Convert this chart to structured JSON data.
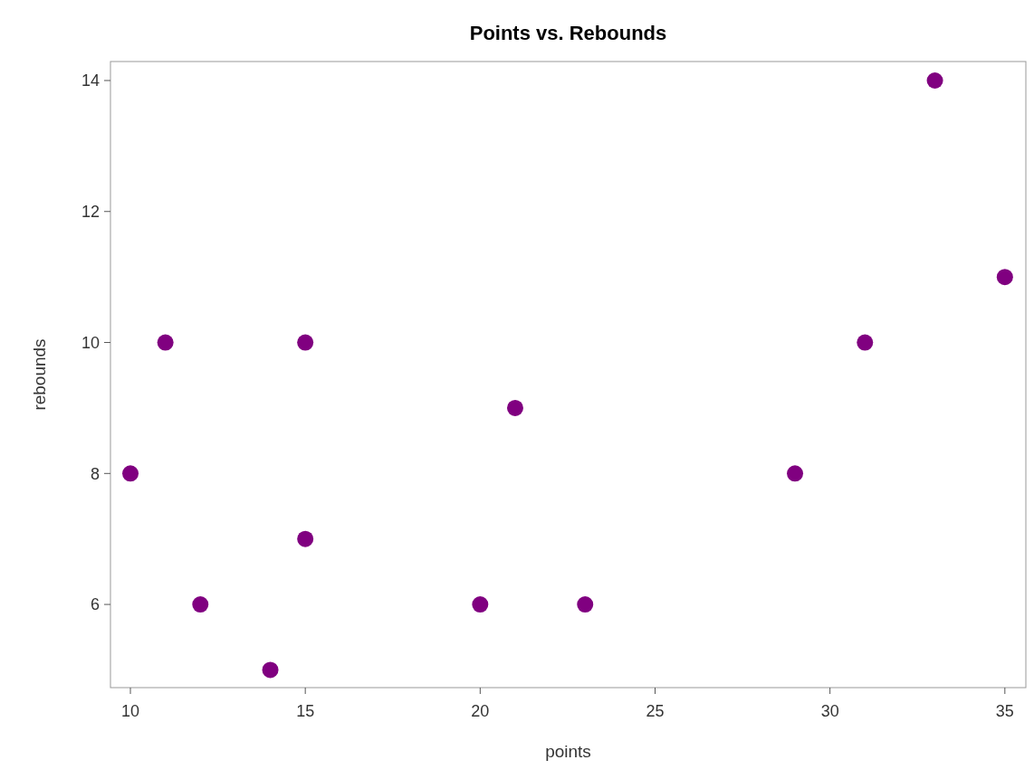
{
  "chart_data": {
    "type": "scatter",
    "title": "Points vs. Rebounds",
    "xlabel": "points",
    "ylabel": "rebounds",
    "x": [
      10,
      11,
      12,
      14,
      15,
      15,
      20,
      21,
      23,
      29,
      31,
      33,
      35
    ],
    "series": [
      {
        "color": "#800080",
        "values": [
          8,
          10,
          6,
          5,
          10,
          7,
          6,
          9,
          6,
          8,
          10,
          14,
          11
        ]
      }
    ],
    "xlim": [
      9.43,
      35.6
    ],
    "ylim": [
      4.73,
      14.29
    ],
    "xticks": [
      10,
      15,
      20,
      25,
      30,
      35
    ],
    "yticks": [
      6,
      8,
      10,
      12,
      14
    ],
    "marker": "circle",
    "grid": false
  }
}
